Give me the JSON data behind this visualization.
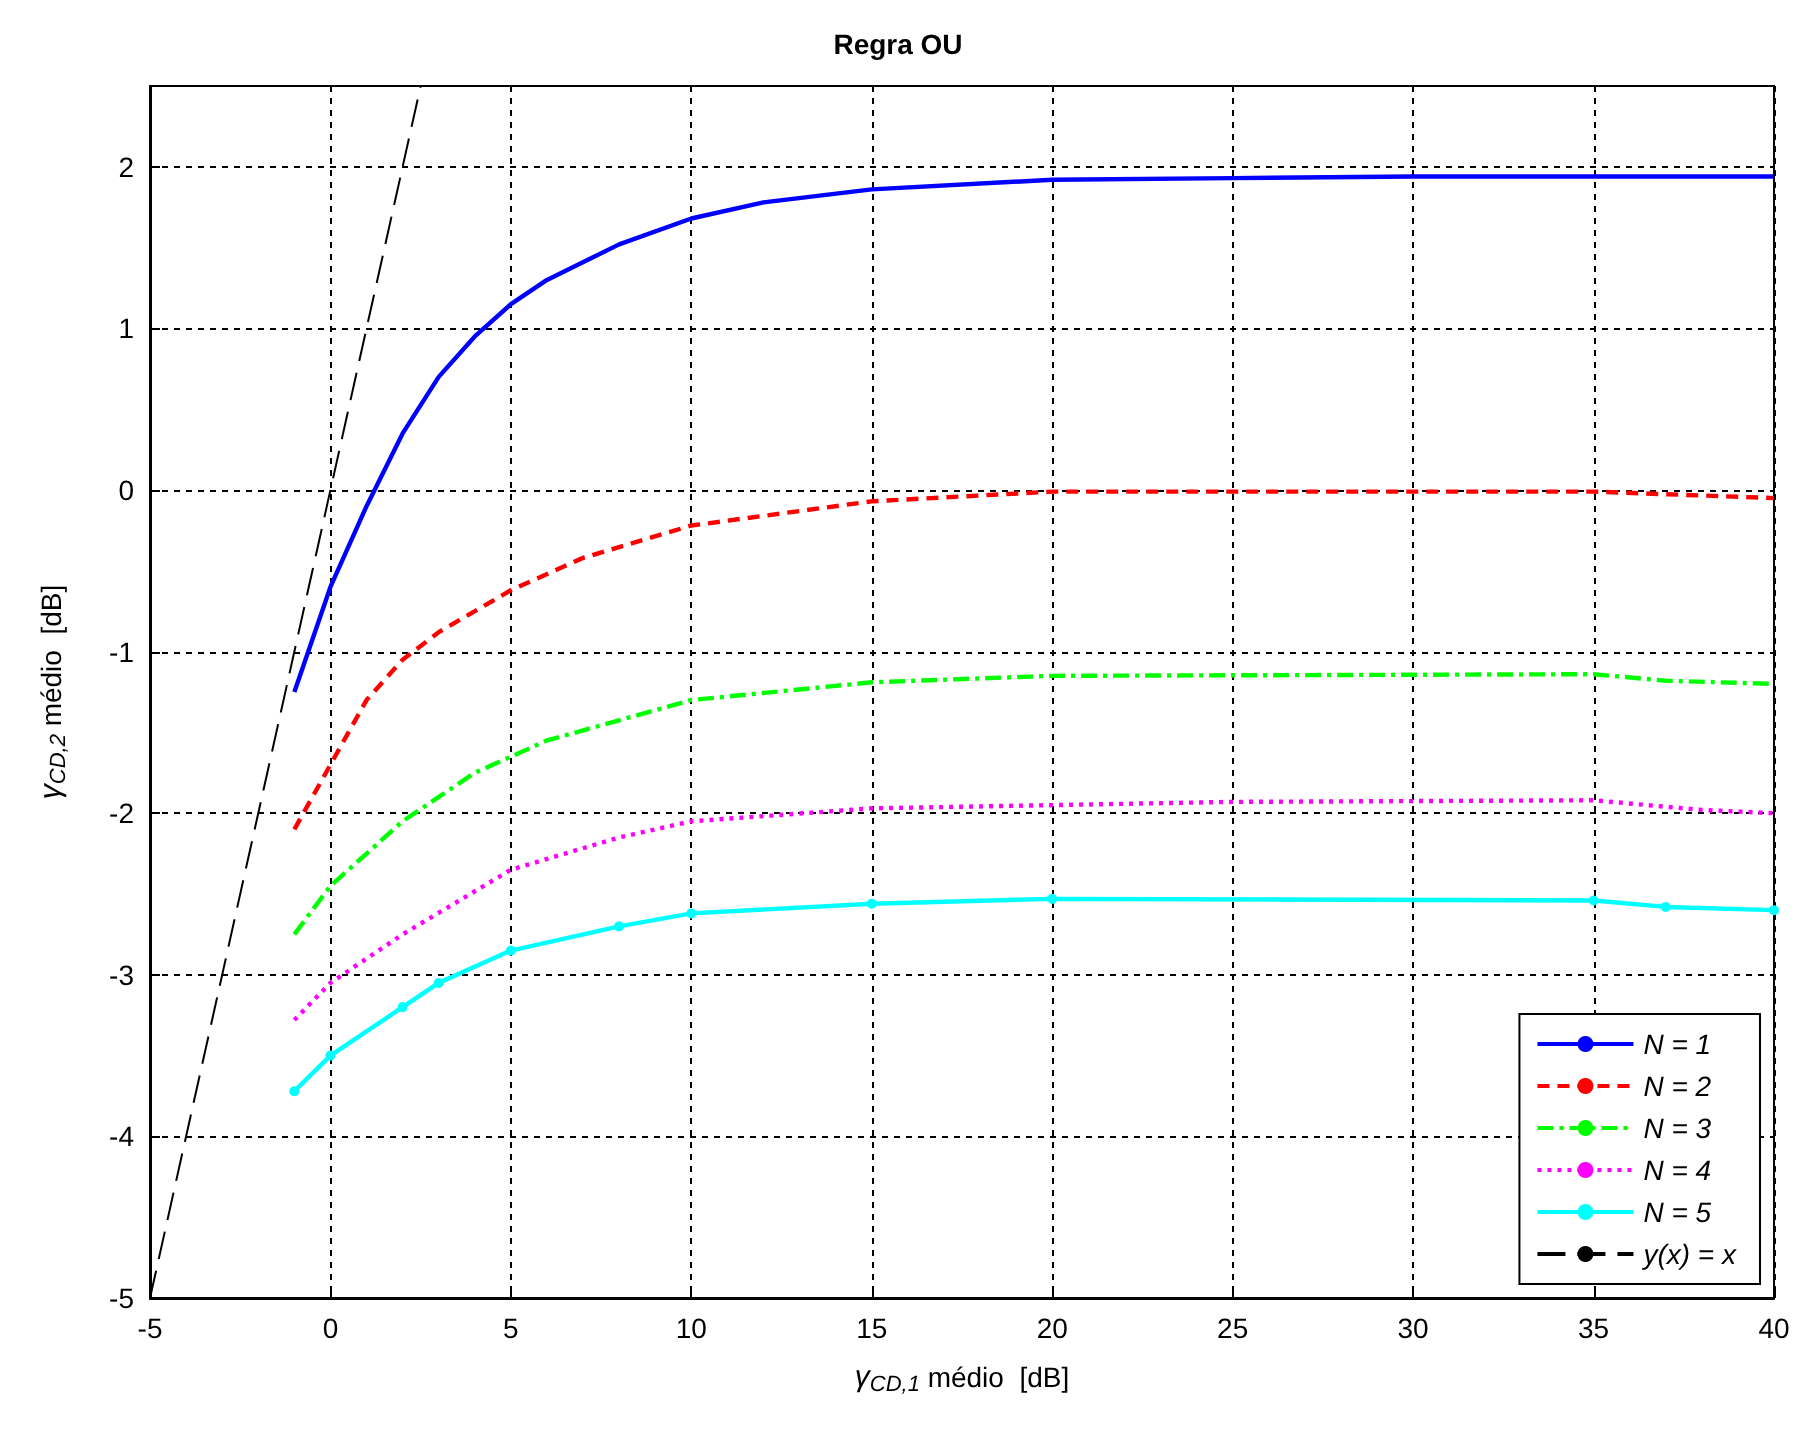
{
  "chart_data": {
    "type": "line",
    "title": "Regra OU",
    "xlabel": "γ$_{CD,1}$ médio  [dB]",
    "ylabel": "γ$_{CD,2}$ médio  [dB]",
    "xlim": [
      -5,
      40
    ],
    "xticks": [
      -5,
      0,
      5,
      10,
      15,
      20,
      25,
      30,
      35,
      40
    ],
    "ylim": [
      -5,
      2.5
    ],
    "yticks": [
      -5,
      -4,
      -3,
      -2,
      -1,
      0,
      1,
      2
    ],
    "grid": true,
    "legend": "bottom right",
    "marker": "none",
    "series": [
      {
        "name": "N = 1",
        "color": "#0000ff",
        "line_style": "solid",
        "x": [
          -1,
          0,
          1,
          2,
          3,
          4,
          5,
          6,
          8,
          10,
          12,
          15,
          20,
          25,
          30,
          40
        ],
        "values": [
          -1.25,
          -0.6,
          -0.1,
          0.35,
          0.7,
          0.95,
          1.15,
          1.3,
          1.52,
          1.68,
          1.78,
          1.86,
          1.92,
          1.93,
          1.94,
          1.94
        ]
      },
      {
        "name": "N = 2",
        "color": "#ff0000",
        "line_style": "dashed",
        "x": [
          -1,
          0,
          1,
          2,
          3,
          5,
          7,
          10,
          15,
          20,
          30,
          35,
          40
        ],
        "values": [
          -2.1,
          -1.7,
          -1.3,
          -1.05,
          -0.88,
          -0.62,
          -0.42,
          -0.22,
          -0.07,
          -0.01,
          -0.01,
          -0.01,
          -0.05
        ]
      },
      {
        "name": "N = 3",
        "color": "#00ff00",
        "line_style": "dashdot",
        "x": [
          -1,
          0,
          2,
          4,
          6,
          10,
          15,
          20,
          35,
          37,
          40
        ],
        "values": [
          -2.75,
          -2.45,
          -2.05,
          -1.75,
          -1.55,
          -1.3,
          -1.19,
          -1.15,
          -1.14,
          -1.18,
          -1.2
        ]
      },
      {
        "name": "N = 4",
        "color": "#ff00ff",
        "line_style": "dotted",
        "x": [
          -1,
          0,
          2,
          5,
          8,
          10,
          15,
          20,
          25,
          35,
          38,
          40
        ],
        "values": [
          -3.28,
          -3.05,
          -2.75,
          -2.35,
          -2.15,
          -2.05,
          -1.97,
          -1.95,
          -1.93,
          -1.92,
          -1.98,
          -2.0
        ]
      },
      {
        "name": "N = 5",
        "color": "#00ffff",
        "line_style": "solid",
        "marker": "circle",
        "x": [
          -1,
          0,
          2,
          3,
          5,
          8,
          10,
          15,
          20,
          35,
          37,
          40
        ],
        "values": [
          -3.72,
          -3.5,
          -3.2,
          -3.05,
          -2.85,
          -2.7,
          -2.62,
          -2.56,
          -2.53,
          -2.54,
          -2.58,
          -2.6
        ]
      },
      {
        "name": "y(x) = x",
        "color": "#000000",
        "line_style": "longdash",
        "x": [
          -5,
          2.5
        ],
        "values": [
          -5,
          2.5
        ]
      }
    ]
  }
}
